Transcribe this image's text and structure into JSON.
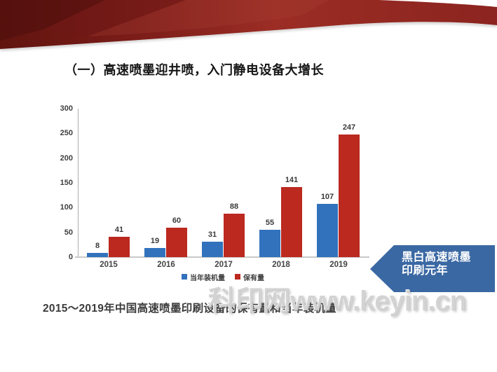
{
  "slide": {
    "title": "（一）高速喷墨迎井喷，入门静电设备大增长",
    "caption": "2015～2019年中国高速喷墨印刷设备的保有量和当年装机量",
    "watermark": "科印网www.keyin.cn",
    "banner": {
      "line1": "黑白高速喷墨",
      "line2": "印刷元年",
      "color": "#3a68a3"
    }
  },
  "chart_data": {
    "type": "bar",
    "categories": [
      "2015",
      "2016",
      "2017",
      "2018",
      "2019"
    ],
    "series": [
      {
        "name": "当年装机量",
        "color": "#3272bc",
        "values": [
          8,
          19,
          31,
          55,
          107
        ]
      },
      {
        "name": "保有量",
        "color": "#bb291f",
        "values": [
          41,
          60,
          88,
          141,
          247
        ]
      }
    ],
    "title": "",
    "xlabel": "",
    "ylabel": "",
    "ylim": [
      0,
      300
    ],
    "yticks": [
      0,
      50,
      100,
      150,
      200,
      250,
      300
    ],
    "grid": false,
    "legend_position": "bottom",
    "bar_value_labels": true
  },
  "colors": {
    "ribbon_dark": "#5e1412",
    "ribbon_mid": "#8e2620",
    "ribbon_bright": "#9b2d25",
    "axis_line": "#bdbdbd",
    "tick_text": "#3f3f3f"
  }
}
